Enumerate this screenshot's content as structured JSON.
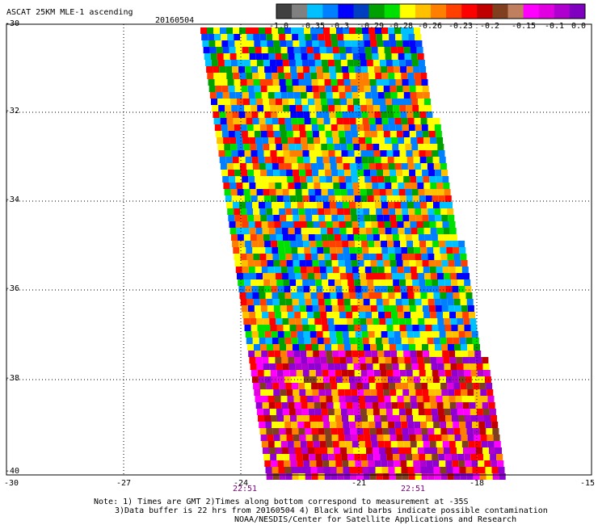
{
  "header": {
    "title": "ASCAT 25KM MLE-1 ascending",
    "date": "20160504"
  },
  "colorbar": {
    "colors": [
      "#404040",
      "#808080",
      "#00c0ff",
      "#0080ff",
      "#0000ff",
      "#0040c0",
      "#00a000",
      "#00e000",
      "#ffff00",
      "#ffc000",
      "#ff8000",
      "#ff4000",
      "#ff0000",
      "#c00000",
      "#804020",
      "#c08060",
      "#ff00ff",
      "#e000e0",
      "#b000d0",
      "#8000c0"
    ],
    "labels": [
      "-1.0",
      "-0.35",
      "-0.3",
      "-0.29",
      "-0.28",
      "-0.26",
      "-0.23",
      "-0.2",
      "-0.15",
      "-0.1",
      "0.0"
    ]
  },
  "axes": {
    "y_ticks": [
      "-30",
      "-32",
      "-34",
      "-36",
      "-38",
      "-40"
    ],
    "x_ticks": [
      "-30",
      "-27",
      "-24",
      "-21",
      "-18",
      "-15"
    ],
    "time_labels": [
      "22:51",
      "22:51"
    ]
  },
  "notes": {
    "line1": "Note: 1) Times are GMT 2)Times along bottom correspond to measurement at -35S",
    "line2": "3)Data buffer is 22 hrs from 20160504 4) Black wind barbs indicate possible contamination",
    "line3": "NOAA/NESDIS/Center for Satellite Applications and Research"
  }
}
